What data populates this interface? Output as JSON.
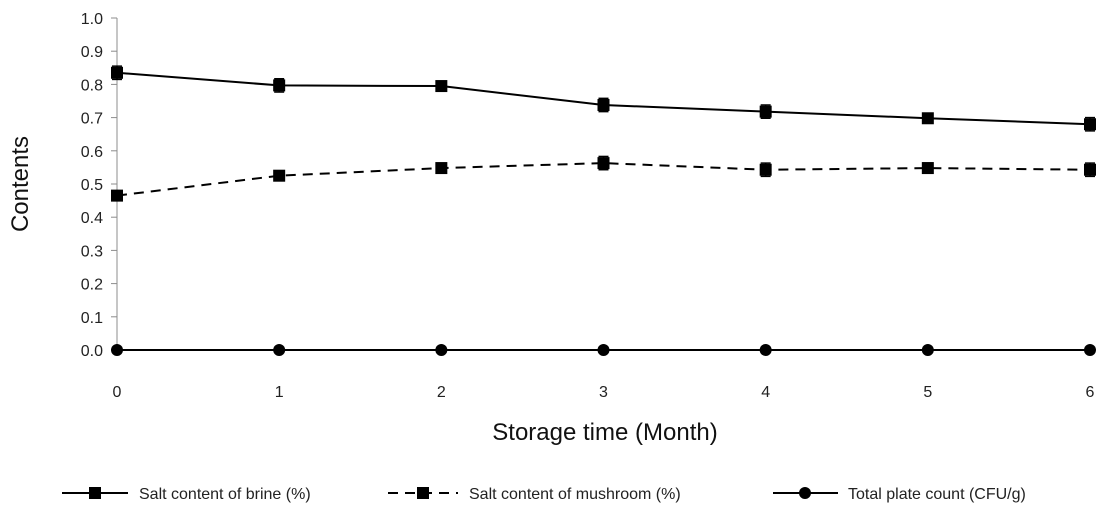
{
  "chart_data": {
    "type": "line",
    "title": "",
    "xlabel": "Storage time (Month)",
    "ylabel": "Contents",
    "x": [
      0,
      1,
      2,
      3,
      4,
      5,
      6
    ],
    "ylim": [
      0,
      1.0
    ],
    "yticks": [
      "0.0",
      "0.1",
      "0.2",
      "0.3",
      "0.4",
      "0.5",
      "0.6",
      "0.7",
      "0.8",
      "0.9",
      "1.0"
    ],
    "xticks": [
      "0",
      "1",
      "2",
      "3",
      "4",
      "5",
      "6"
    ],
    "grid": false,
    "legend_position": "bottom",
    "series": [
      {
        "name": "Salt content of brine (%)",
        "values": [
          0.835,
          0.797,
          0.795,
          0.738,
          0.718,
          0.698,
          0.68
        ],
        "errors": [
          0.02,
          0.02,
          0.008,
          0.02,
          0.02,
          0.01,
          0.02
        ],
        "line_style": "solid",
        "marker": "square",
        "color": "#000000"
      },
      {
        "name": "Salt content of mushroom (%)",
        "values": [
          0.465,
          0.525,
          0.548,
          0.563,
          0.543,
          0.548,
          0.543
        ],
        "errors": [
          0.01,
          0.008,
          0.01,
          0.02,
          0.02,
          0.015,
          0.02
        ],
        "line_style": "dashed",
        "marker": "square",
        "color": "#000000"
      },
      {
        "name": "Total plate count (CFU/g)",
        "values": [
          0,
          0,
          0,
          0,
          0,
          0,
          0
        ],
        "errors": [
          0,
          0,
          0,
          0,
          0,
          0,
          0
        ],
        "line_style": "solid",
        "marker": "circle",
        "color": "#000000"
      }
    ]
  }
}
